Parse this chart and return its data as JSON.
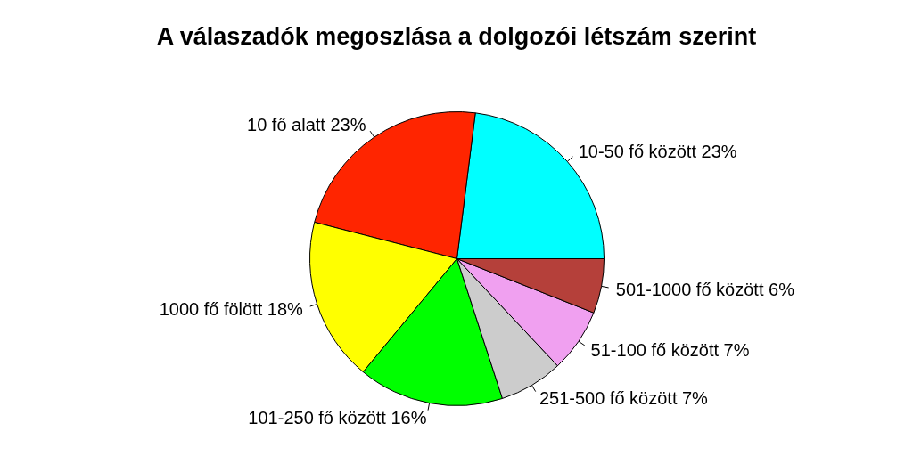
{
  "chart_data": {
    "type": "pie",
    "title": "A válaszadók megoszlása a dolgozói létszám szerint",
    "categories": [
      "10-50 fő között",
      "10 fő alatt",
      "1000 fő fölött",
      "101-250 fő között",
      "251-500 fő között",
      "51-100 fő között",
      "501-1000 fő között"
    ],
    "values": [
      23,
      23,
      18,
      16,
      7,
      7,
      6
    ],
    "value_labels": [
      "23%",
      "23%",
      "18%",
      "16%",
      "7%",
      "7%",
      "6%"
    ],
    "colors": [
      "#00ffff",
      "#ff2500",
      "#ffff00",
      "#00ff00",
      "#cccccc",
      "#f0a0f0",
      "#b5403a"
    ]
  }
}
